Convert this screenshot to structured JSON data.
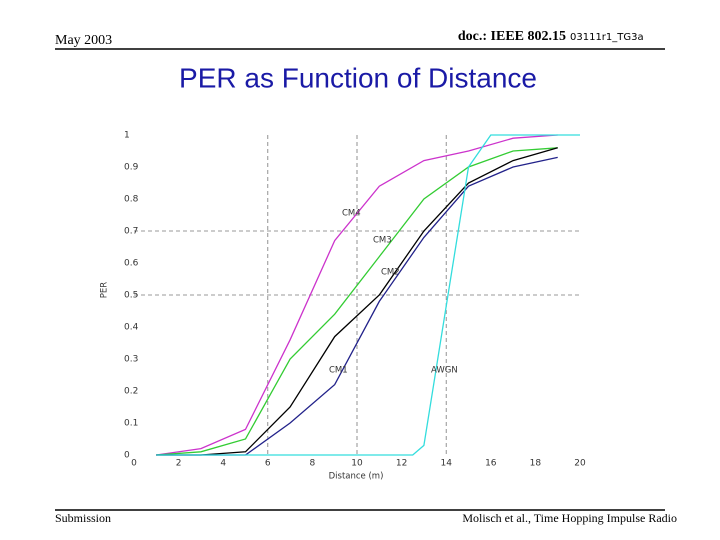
{
  "header": {
    "date": "May 2003",
    "doc": "doc.: IEEE 802.15",
    "doc_id": "03111r1_TG3a"
  },
  "footer": {
    "left": "Submission",
    "right": "Molisch et al., Time Hopping Impulse Radio"
  },
  "chart_data": {
    "type": "line",
    "title": "PER as Function of Distance",
    "x_label": "Distance (m)",
    "y_label": "PER",
    "xlim": [
      0,
      20
    ],
    "ylim": [
      0,
      1
    ],
    "xticks": [
      0,
      2,
      4,
      6,
      8,
      10,
      12,
      14,
      16,
      18,
      20
    ],
    "yticks": [
      0,
      0.1,
      0.2,
      0.3,
      0.4,
      0.5,
      0.6,
      0.7,
      0.8,
      0.9,
      1
    ],
    "grid_x": [
      6,
      10,
      14
    ],
    "grid_y": [
      0.5,
      0.7
    ],
    "series": [
      {
        "name": "CM4",
        "color": "#cc33cc",
        "x": [
          1,
          3,
          5,
          7,
          9,
          11,
          13,
          15,
          17,
          19
        ],
        "values": [
          0,
          0.02,
          0.08,
          0.36,
          0.67,
          0.84,
          0.92,
          0.95,
          0.99,
          1.0
        ]
      },
      {
        "name": "CM3",
        "color": "#33cc33",
        "x": [
          1,
          3,
          5,
          7,
          9,
          11,
          13,
          15,
          17,
          19
        ],
        "values": [
          0,
          0.01,
          0.05,
          0.3,
          0.44,
          0.62,
          0.8,
          0.9,
          0.95,
          0.96
        ]
      },
      {
        "name": "CM2",
        "color": "#000000",
        "x": [
          1,
          3,
          5,
          7,
          9,
          11,
          13,
          15,
          17,
          19
        ],
        "values": [
          0,
          0,
          0.01,
          0.15,
          0.37,
          0.5,
          0.7,
          0.85,
          0.92,
          0.96
        ]
      },
      {
        "name": "CM1",
        "color": "#22228a",
        "x": [
          1,
          3,
          5,
          7,
          9,
          11,
          13,
          15,
          17,
          19
        ],
        "values": [
          0,
          0,
          0,
          0.1,
          0.22,
          0.48,
          0.68,
          0.84,
          0.9,
          0.93
        ]
      },
      {
        "name": "AWGN",
        "color": "#33dddd",
        "x": [
          1,
          12.5,
          13,
          15,
          16,
          20
        ],
        "values": [
          0,
          0,
          0.03,
          0.9,
          1.0,
          1.0
        ]
      }
    ]
  }
}
